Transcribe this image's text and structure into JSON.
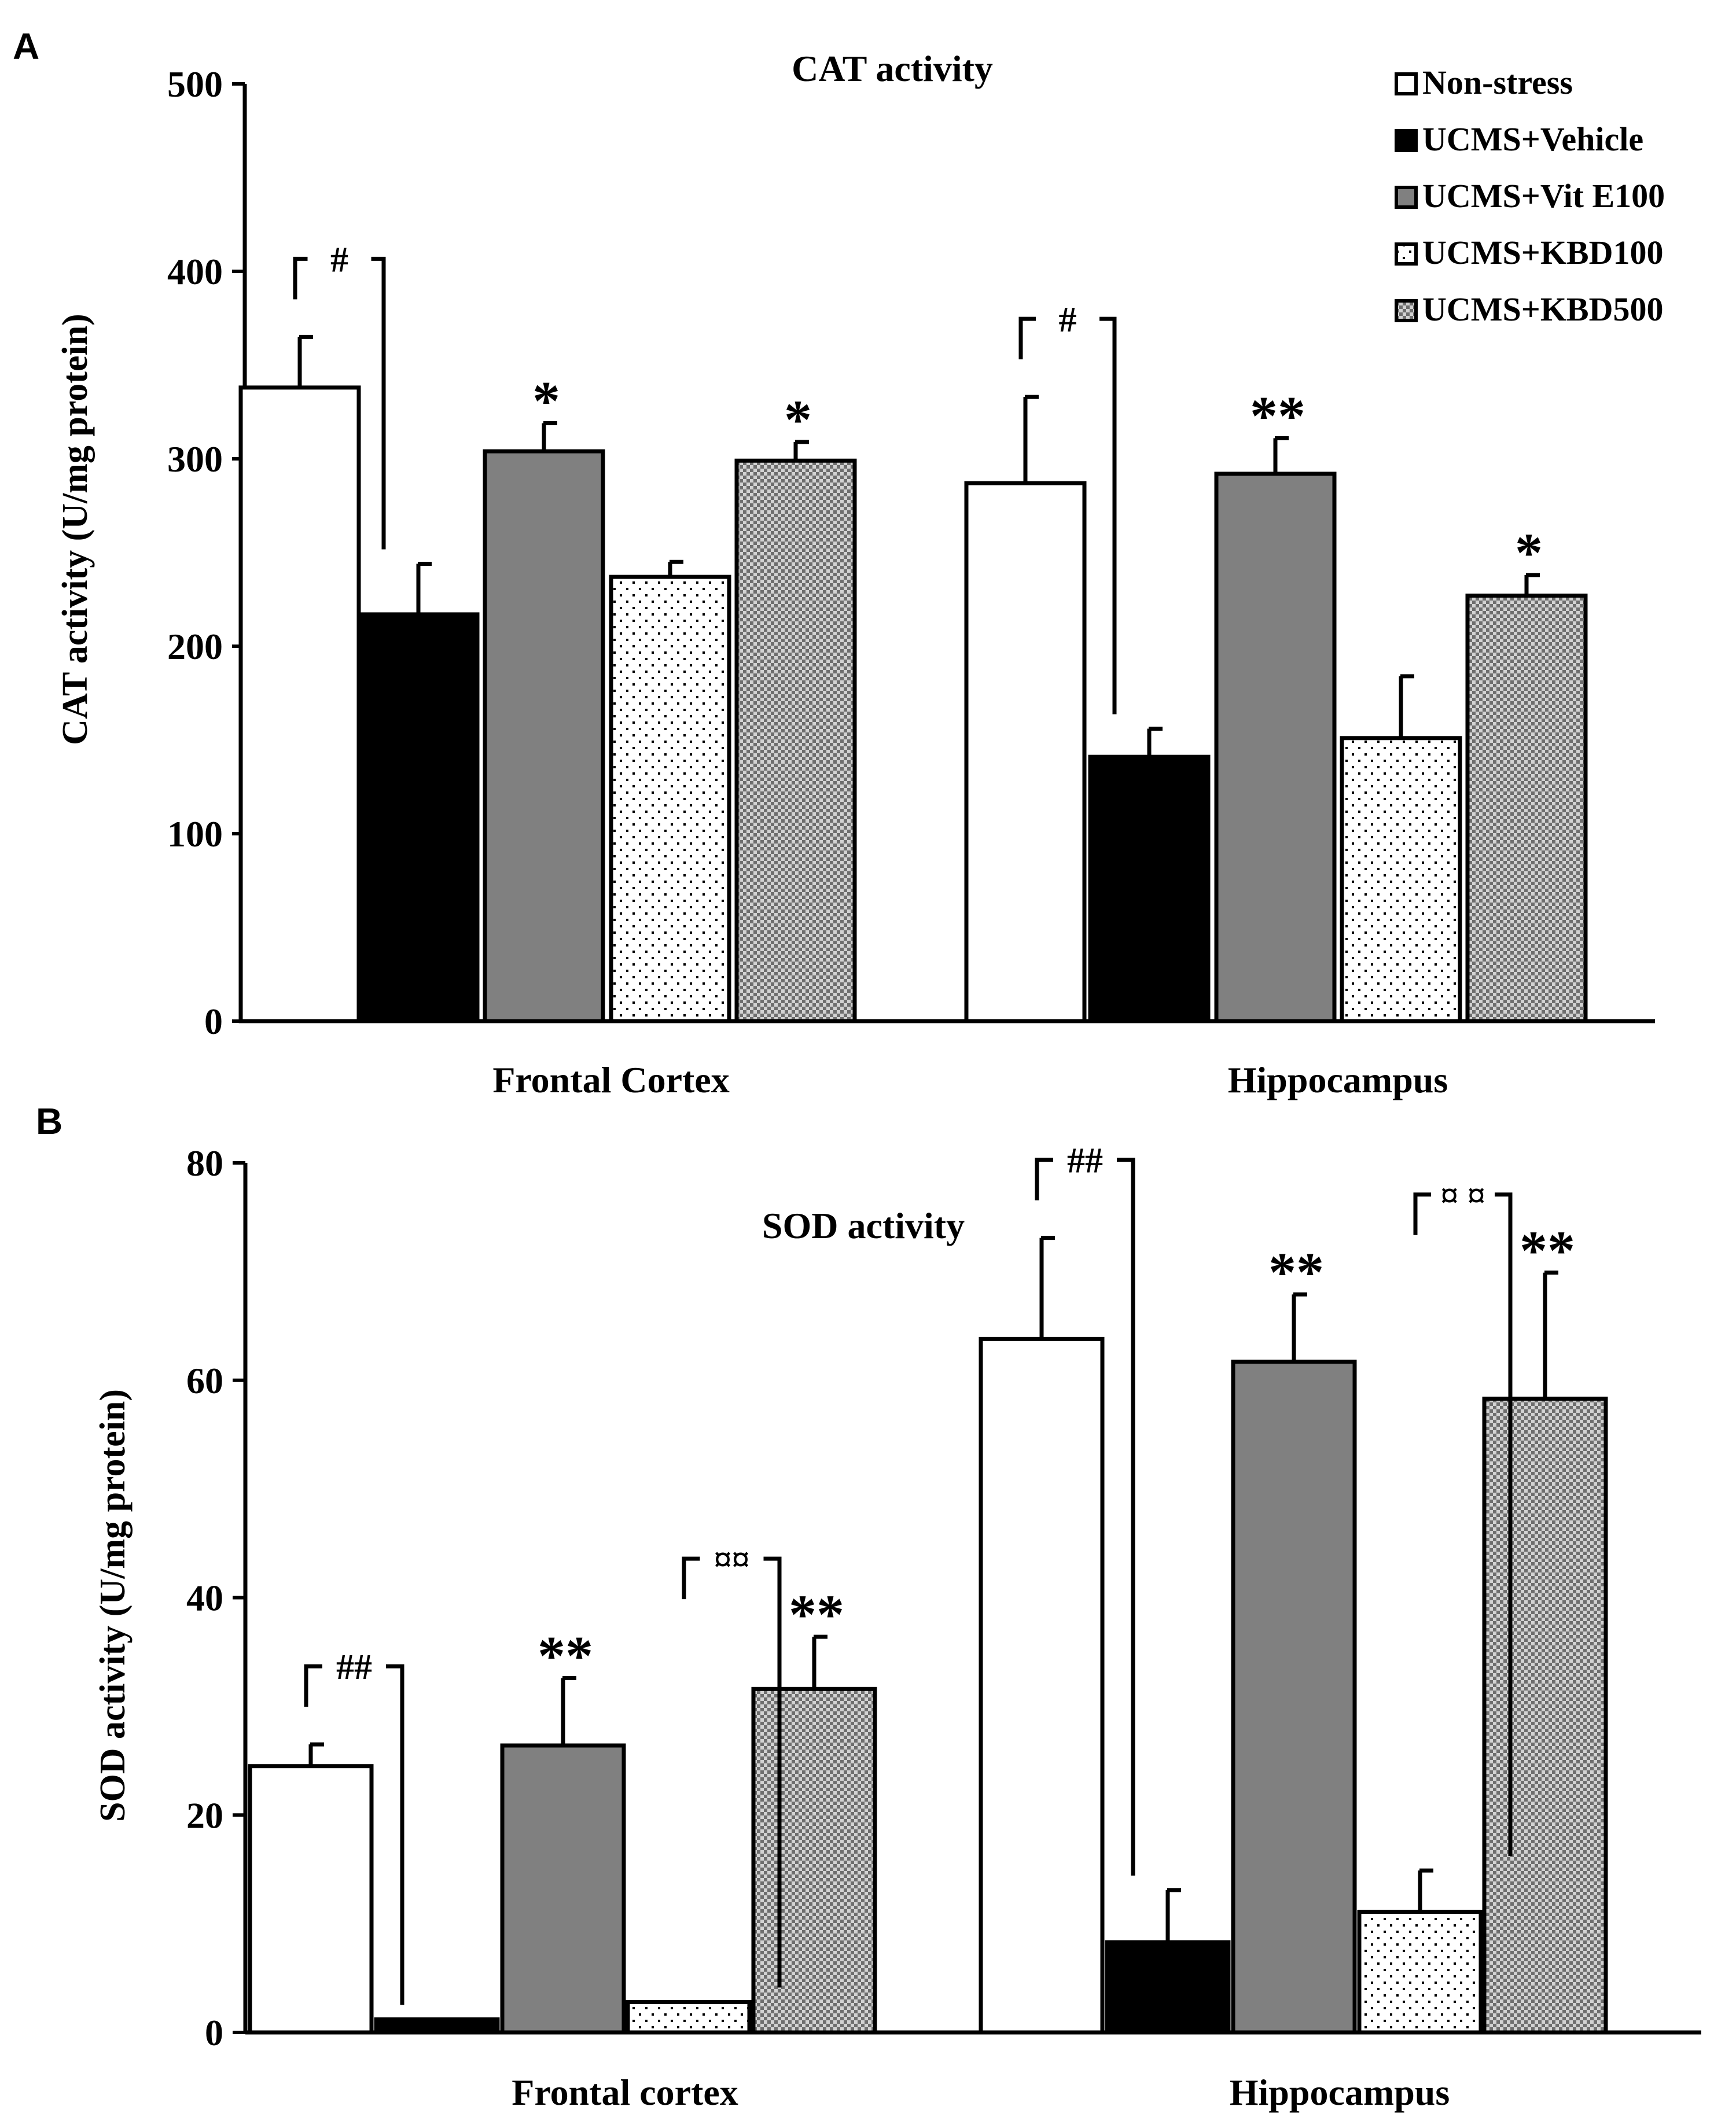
{
  "colors": {
    "non_stress": "#ffffff",
    "ucms_vehicle": "#000000",
    "ucms_vite100": "#808080",
    "ucms_kbd100": "#ffffff",
    "ucms_kbd500": "#8c8c8c",
    "stroke": "#000000"
  },
  "legend": {
    "items": [
      "Non-stress",
      "UCMS+Vehicle",
      "UCMS+Vit E100",
      "UCMS+KBD100",
      "UCMS+KBD500"
    ]
  },
  "chart_data": [
    {
      "type": "bar",
      "panel_label": "A",
      "title": "CAT activity",
      "ylabel": "CAT activity (U/mg protein)",
      "xlabel": "",
      "ylim": [
        0,
        500
      ],
      "yticks": [
        0,
        100,
        200,
        300,
        400,
        500
      ],
      "categories": [
        "Frontal Cortex",
        "Hippocampus"
      ],
      "legend_position": "top-right",
      "series": [
        {
          "name": "Non-stress",
          "values": [
            338,
            287
          ],
          "errors": [
            27,
            46
          ],
          "marks": [
            "",
            ""
          ]
        },
        {
          "name": "UCMS+Vehicle",
          "values": [
            217,
            141
          ],
          "errors": [
            27,
            15
          ],
          "marks": [
            "",
            ""
          ]
        },
        {
          "name": "UCMS+Vit E100",
          "values": [
            304,
            292
          ],
          "errors": [
            15,
            19
          ],
          "marks": [
            "*",
            "**"
          ]
        },
        {
          "name": "UCMS+KBD100",
          "values": [
            237,
            151
          ],
          "errors": [
            8,
            33
          ],
          "marks": [
            "",
            ""
          ]
        },
        {
          "name": "UCMS+KBD500",
          "values": [
            299,
            227
          ],
          "errors": [
            10,
            11
          ],
          "marks": [
            "*",
            "*"
          ]
        }
      ],
      "comparisons": [
        {
          "category": 0,
          "from": 0,
          "to": 1,
          "label": "#"
        },
        {
          "category": 1,
          "from": 0,
          "to": 1,
          "label": "#"
        }
      ]
    },
    {
      "type": "bar",
      "panel_label": "B",
      "title": "SOD activity",
      "ylabel": "SOD activity (U/mg protein)",
      "xlabel": "",
      "ylim": [
        0,
        80
      ],
      "yticks": [
        0,
        20,
        40,
        60,
        80
      ],
      "categories": [
        "Frontal cortex",
        "Hippocampus"
      ],
      "legend_position": "none",
      "series": [
        {
          "name": "Non-stress",
          "values": [
            24.5,
            63.8
          ],
          "errors": [
            2.0,
            9.3
          ],
          "marks": [
            "",
            ""
          ]
        },
        {
          "name": "UCMS+Vehicle",
          "values": [
            1.2,
            8.3
          ],
          "errors": [
            0,
            4.8
          ],
          "marks": [
            "",
            ""
          ]
        },
        {
          "name": "UCMS+Vit E100",
          "values": [
            26.4,
            61.7
          ],
          "errors": [
            6.2,
            6.2
          ],
          "marks": [
            "**",
            "**"
          ]
        },
        {
          "name": "UCMS+KBD100",
          "values": [
            2.8,
            11.1
          ],
          "errors": [
            0,
            3.8
          ],
          "marks": [
            "",
            ""
          ]
        },
        {
          "name": "UCMS+KBD500",
          "values": [
            31.6,
            58.3
          ],
          "errors": [
            4.8,
            11.6
          ],
          "marks": [
            "**",
            "**"
          ]
        }
      ],
      "comparisons": [
        {
          "category": 0,
          "from": 0,
          "to": 1,
          "label": "##"
        },
        {
          "category": 0,
          "from": 3,
          "to": 4,
          "label": "¤¤"
        },
        {
          "category": 1,
          "from": 0,
          "to": 1,
          "label": "##"
        },
        {
          "category": 1,
          "from": 3,
          "to": 4,
          "label": "¤ ¤"
        }
      ]
    }
  ]
}
